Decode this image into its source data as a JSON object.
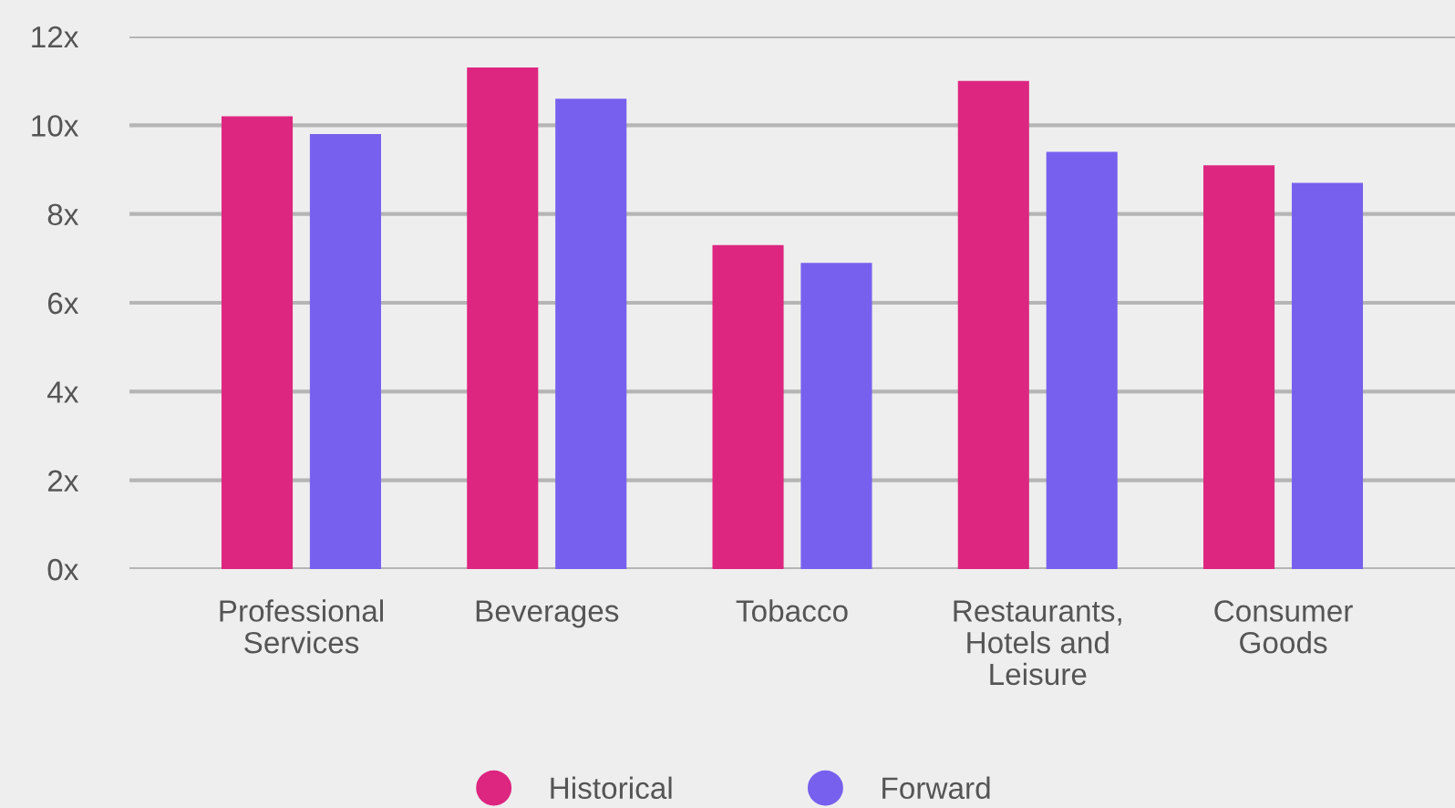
{
  "chart_data": {
    "type": "bar",
    "categories": [
      "Professional\nServices",
      "Beverages",
      "Tobacco",
      "Restaurants,\nHotels and\nLeisure",
      "Consumer\nGoods"
    ],
    "series": [
      {
        "name": "Historical",
        "color": "#dd2680",
        "values": [
          10.2,
          11.3,
          7.3,
          11.0,
          9.1
        ]
      },
      {
        "name": "Forward",
        "color": "#7860ee",
        "values": [
          9.8,
          10.6,
          6.9,
          9.4,
          8.7
        ]
      }
    ],
    "ylim": [
      0,
      12
    ],
    "yticks": [
      {
        "value": 0,
        "label": "0x"
      },
      {
        "value": 2,
        "label": "2x"
      },
      {
        "value": 4,
        "label": "4x"
      },
      {
        "value": 6,
        "label": "6x"
      },
      {
        "value": 8,
        "label": "8x"
      },
      {
        "value": 10,
        "label": "10x"
      },
      {
        "value": 12,
        "label": "12x"
      }
    ],
    "grid": "y",
    "legend": "bottom"
  }
}
